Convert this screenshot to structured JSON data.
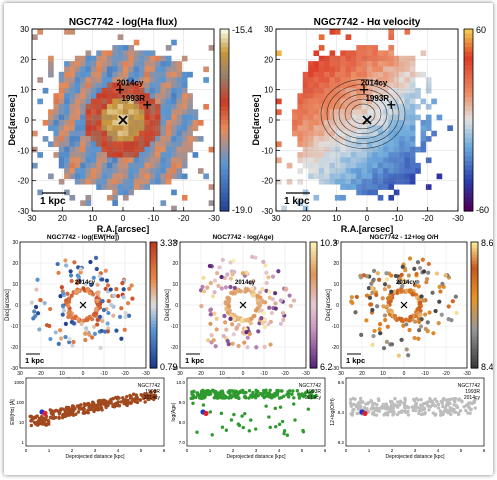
{
  "figure": {
    "colors": {
      "ax": "#000000",
      "grid": "#aaaaaa",
      "brown": "#a2491e",
      "green": "#2f9a2f",
      "gray": "#bdbdbd",
      "blue": "#1f36d6",
      "red": "#e0232b",
      "magenta": "#cc33cc"
    },
    "map_panels": [
      {
        "id": "flux",
        "title": "NGC7742 - log(Ha flux)",
        "cmap": "flux",
        "cb_top": "-15.4",
        "cb_bottom": "-19.0",
        "xlabel": "R.A.[arcsec]",
        "ylabel": "Dec[arcsec]",
        "scale_label": "1 kpc",
        "markers": [
          {
            "label": "1993R",
            "dx": 8,
            "dy": 5
          },
          {
            "label": "2014cy",
            "dx": -1,
            "dy": 10
          }
        ],
        "contours": false
      },
      {
        "id": "vel",
        "title": "NGC7742 - Hα velocity",
        "cmap": "vel",
        "cb_top": "60",
        "cb_bottom": "-60",
        "xlabel": "R.A.[arcsec]",
        "ylabel": "Dec[arcsec]",
        "scale_label": "1 kpc",
        "markers": [
          {
            "label": "1993R",
            "dx": 8,
            "dy": 5
          },
          {
            "label": "2014cy",
            "dx": -1,
            "dy": 10
          }
        ],
        "contours": true
      }
    ],
    "x_ticks": [
      "30",
      "20",
      "10",
      "0",
      "-10",
      "-20",
      "-30"
    ],
    "y_ticks": [
      "30",
      "20",
      "10",
      "0",
      "-10",
      "-20",
      "-30"
    ],
    "small_x_ticks": [
      "30",
      "20",
      "10",
      "0",
      "-10",
      "-20",
      "-30"
    ],
    "small_y_ticks": [
      "30",
      "20",
      "10",
      "0",
      "-10",
      "-20",
      "-30"
    ],
    "scatter_maps": [
      {
        "id": "ew",
        "title": "NGC7742 - log(EW[Hα])",
        "cb_top": "3.33",
        "cb_bottom": "0.79",
        "xlabel": "R.A.[arcsec]",
        "ylabel": "Dec[arcsec]",
        "scale_label": "1 kpc",
        "marker": "2014cy"
      },
      {
        "id": "age",
        "title": "NGC7742 - log(Age)",
        "cb_top": "10.3",
        "cb_bottom": "6.2",
        "xlabel": "R.A.[arcsec]",
        "ylabel": "Dec[arcsec]",
        "scale_label": "1 kpc",
        "marker": "2014cy"
      },
      {
        "id": "oh",
        "title": "NGC7742 - 12+log O/H",
        "cb_top": "8.6",
        "cb_bottom": "8.4",
        "xlabel": "R.A.[arcsec]",
        "ylabel": "Dec[arcsec]",
        "scale_label": "1 kpc",
        "marker": "2014cy"
      }
    ],
    "profile_panels": [
      {
        "id": "p1",
        "color": "brown",
        "ylabel": "EW(Hα) [Å]",
        "xlabel": "Deprojected distance [kpc]",
        "y_ticks": [
          "1000",
          "100",
          "10",
          "1"
        ],
        "x_ticks": [
          "0",
          "1",
          "2",
          "3",
          "4",
          "5",
          "6"
        ],
        "legend": [
          {
            "text": "NGC7742",
            "color": "ax"
          },
          {
            "text": "1993R",
            "color": "magenta"
          },
          {
            "text": "2014cy",
            "color": "red"
          }
        ]
      },
      {
        "id": "p2",
        "color": "green",
        "ylabel": "log(Age)",
        "xlabel": "Deprojected distance [kpc]",
        "y_ticks": [
          "10.0",
          "9.0",
          "8.0",
          "7.0"
        ],
        "x_ticks": [
          "0",
          "1",
          "2",
          "3",
          "4",
          "5",
          "6"
        ],
        "legend": [
          {
            "text": "NGC7742",
            "color": "ax"
          },
          {
            "text": "1993R",
            "color": "magenta"
          },
          {
            "text": "2014cy",
            "color": "red"
          }
        ]
      },
      {
        "id": "p3",
        "color": "gray",
        "ylabel": "12+log(O/H)",
        "xlabel": "Deprojected distance [kpc]",
        "y_ticks": [
          "8.6",
          "8.4",
          "8.2"
        ],
        "x_ticks": [
          "0",
          "1",
          "2",
          "3",
          "4",
          "5",
          "6"
        ],
        "legend": [
          {
            "text": "NGC7742",
            "color": "ax"
          },
          {
            "text": "1993R",
            "color": "magenta"
          },
          {
            "text": "2014cy",
            "color": "red"
          }
        ]
      }
    ]
  }
}
